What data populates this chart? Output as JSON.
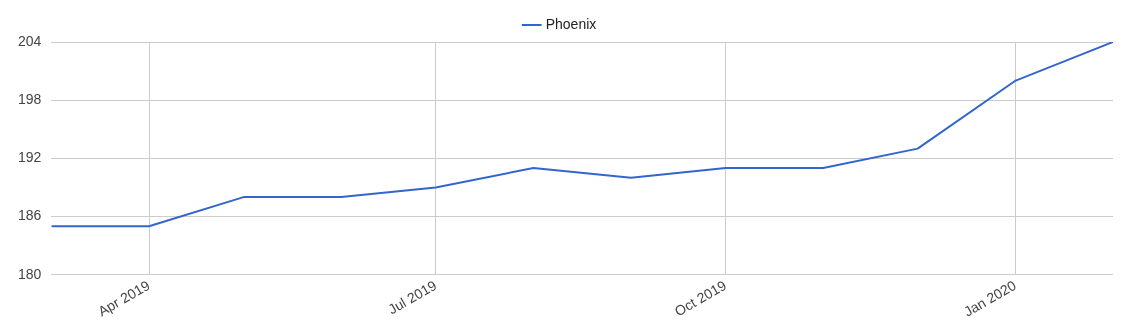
{
  "chart_data": {
    "type": "line",
    "x": [
      "2019-03",
      "2019-04",
      "2019-05",
      "2019-06",
      "2019-07",
      "2019-08",
      "2019-09",
      "2019-10",
      "2019-11",
      "2019-12",
      "2020-01",
      "2020-02"
    ],
    "series": [
      {
        "name": "Phoenix",
        "color": "#3366cc",
        "values": [
          185,
          185,
          188,
          188,
          189,
          191,
          190,
          191,
          191,
          193,
          200,
          204
        ]
      }
    ],
    "xlim": [
      "2019-03",
      "2020-02"
    ],
    "xticks": [
      {
        "value": "2019-04",
        "label": "Apr 2019"
      },
      {
        "value": "2019-07",
        "label": "Jul 2019"
      },
      {
        "value": "2019-10",
        "label": "Oct 2019"
      },
      {
        "value": "2020-01",
        "label": "Jan 2020"
      }
    ],
    "ylim": [
      180,
      204
    ],
    "yticks": [
      180,
      186,
      192,
      198,
      204
    ],
    "grid": true,
    "legend": "top",
    "marker": "none",
    "line_style": "solid"
  }
}
